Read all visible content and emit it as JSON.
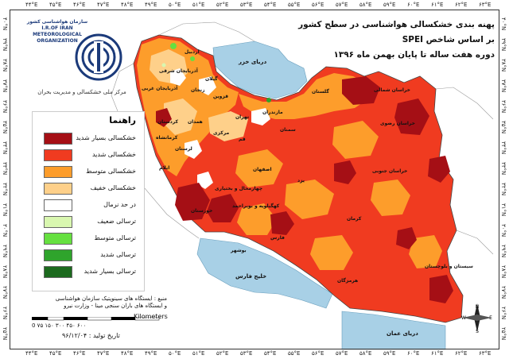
{
  "title": {
    "line1": "پهنه بندی خشکسالی هواشناسی در سطح کشور",
    "line2": "بر اساس شاخص SPEI",
    "line3": "دوره هفت ساله تا پایان بهمن ماه ۱۳۹۶"
  },
  "organization": {
    "name_fa": "سازمان هواشناسی کشور",
    "name_en_1": "I.R.OF IRAN",
    "name_en_2": "METEOROLOGICAL",
    "name_en_3": "ORGANIZATION",
    "subunit": "مرکز ملی خشکسالی و مدیریت بحران"
  },
  "legend": {
    "title": "راهنما",
    "items": [
      {
        "label": "خشکسالی بسیار شدید",
        "color": "#a50f15"
      },
      {
        "label": "خشکسالی شدید",
        "color": "#f03b20"
      },
      {
        "label": "خشکسالی متوسط",
        "color": "#fd9d2b"
      },
      {
        "label": "خشکسالی خفیف",
        "color": "#fed08a"
      },
      {
        "label": "در حد نرمال",
        "color": "#ffffff"
      },
      {
        "label": "ترسالی ضعیف",
        "color": "#d9f7b0"
      },
      {
        "label": "ترسالی متوسط",
        "color": "#66e040"
      },
      {
        "label": "ترسالی شدید",
        "color": "#2fa42c"
      },
      {
        "label": "ترسالی بسیار شدید",
        "color": "#1c6a1e"
      }
    ]
  },
  "source": {
    "line1": "منبع : ایستگاه های سینوپتیک سازمان هواشناسی",
    "line2": "و ایستگاه های باران سنجی مینا - وزارت نیرو"
  },
  "scale": {
    "unit": "Kilometers",
    "numbers": "0  ۷۵ ۱۵۰   ۳۰۰   ۴۵۰   ۶۰۰"
  },
  "date": "تاریخ تولید : ۹۶/۱۲/۰۴",
  "seas": {
    "caspian": "دریای خزر",
    "persian_gulf": "خلیج فارس",
    "oman": "دریای عمان"
  },
  "provinces": [
    "آذربایجان شرقی",
    "آذربایجان غربی",
    "اردبیل",
    "زنجان",
    "گیلان",
    "مازندران",
    "گلستان",
    "خراسان شمالی",
    "خراسان رضوی",
    "کردستان",
    "همدان",
    "قزوین",
    "تهران",
    "سمنان",
    "کرمانشاه",
    "لرستان",
    "مرکزی",
    "قم",
    "اصفهان",
    "یزد",
    "خراسان جنوبی",
    "ایلام",
    "خوزستان",
    "چهارمحال و بختیاری",
    "کهگیلویه و بویراحمد",
    "فارس",
    "کرمان",
    "بوشهر",
    "هرمزگان",
    "سیستان و بلوچستان"
  ],
  "compass": {
    "n": "N",
    "s": "S",
    "e": "E",
    "w": "W"
  },
  "grid": {
    "top": [
      "۴۴°E",
      "۴۵°E",
      "۴۶°E",
      "۴۷°E",
      "۴۸°E",
      "۴۹°E",
      "۵۰°E",
      "۵۱°E",
      "۵۲°E",
      "۵۳°E",
      "۵۴°E",
      "۵۵°E",
      "۵۶°E",
      "۵۷°E",
      "۵۸°E",
      "۵۹°E",
      "۶۰°E",
      "۶۱°E",
      "۶۲°E",
      "۶۳°E"
    ],
    "left": [
      "۴۰°N",
      "۳۹°N",
      "۳۸°N",
      "۳۷°N",
      "۳۶°N",
      "۳۵°N",
      "۳۴°N",
      "۳۳°N",
      "۳۲°N",
      "۳۱°N",
      "۳۰°N",
      "۲۹°N",
      "۲۸°N",
      "۲۷°N",
      "۲۶°N",
      "۲۵°N"
    ]
  }
}
